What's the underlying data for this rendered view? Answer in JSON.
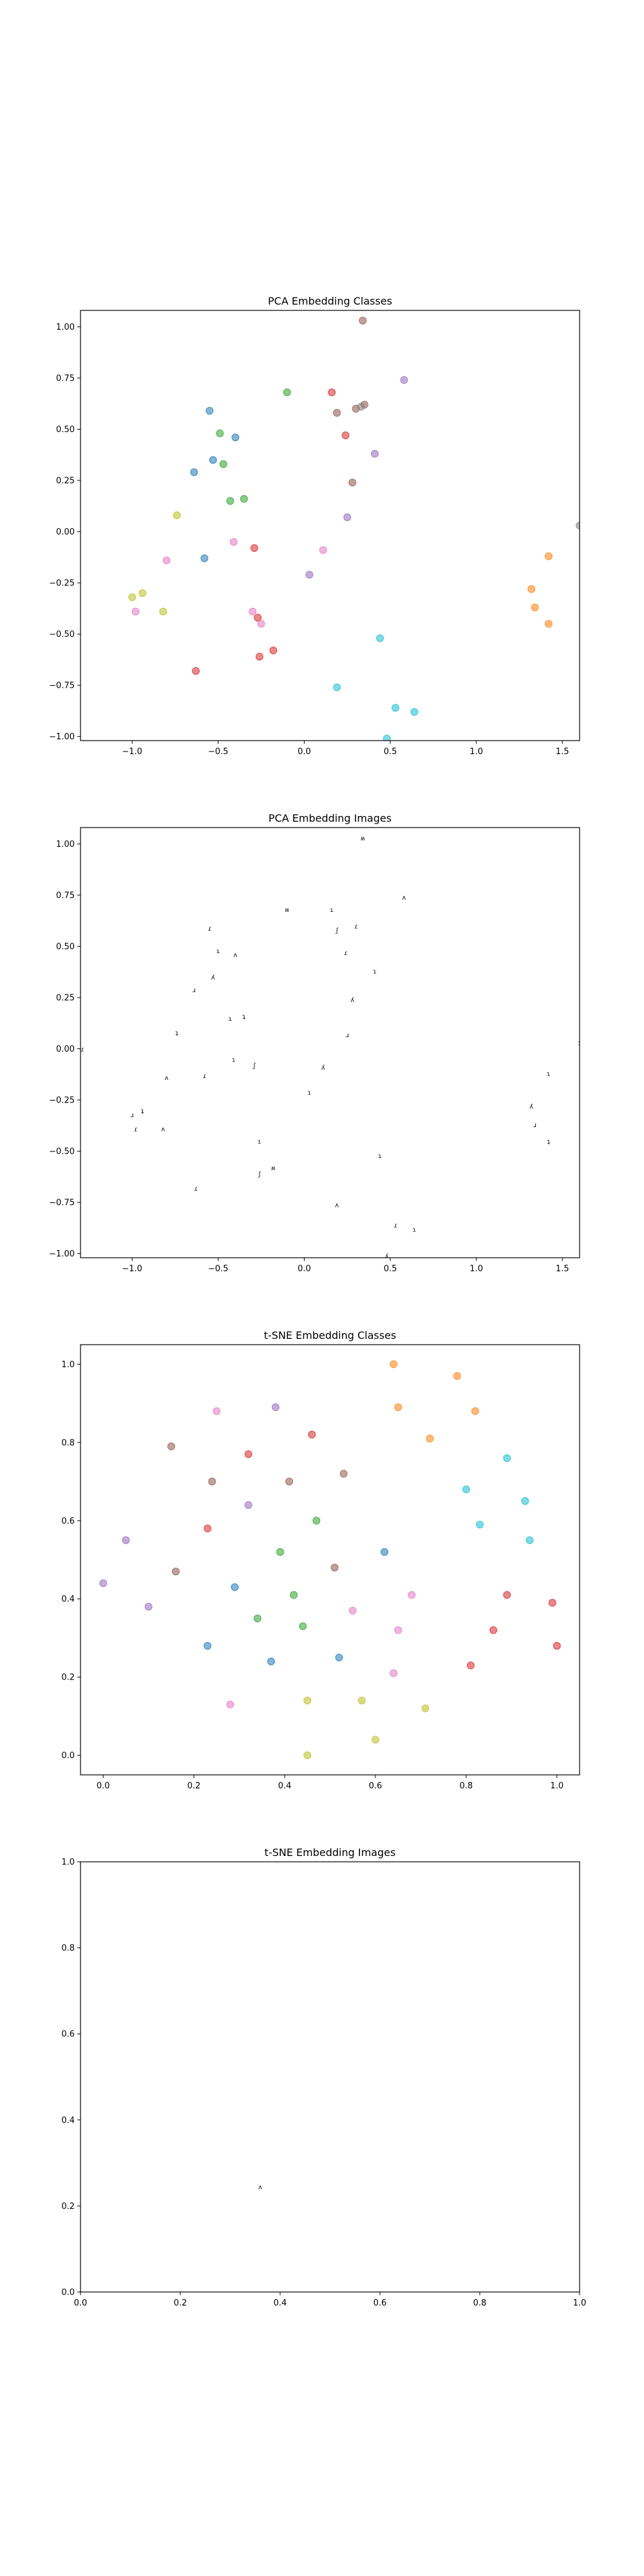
{
  "colors": {
    "tab10": [
      "#1f77b4",
      "#ff7f0e",
      "#2ca02c",
      "#d62728",
      "#9467bd",
      "#8c564b",
      "#e377c2",
      "#7f7f7f",
      "#bcbd22",
      "#17becf"
    ]
  },
  "chart_data": [
    {
      "type": "scatter",
      "title": "PCA Embedding Classes",
      "xlabel": "",
      "ylabel": "",
      "xlim": [
        -1.3,
        1.6
      ],
      "ylim": [
        -1.02,
        1.08
      ],
      "xticks": [
        -1.0,
        -0.5,
        0.0,
        0.5,
        1.0,
        1.5
      ],
      "yticks": [
        -1.0,
        -0.75,
        -0.5,
        -0.25,
        0.0,
        0.25,
        0.5,
        0.75,
        1.0
      ],
      "tick_labels_x": [
        "−1.0",
        "−0.5",
        "0.0",
        "0.5",
        "1.0",
        "1.5"
      ],
      "tick_labels_y": [
        "−1.00",
        "−0.75",
        "−0.50",
        "−0.25",
        "0.00",
        "0.25",
        "0.50",
        "0.75",
        "1.00"
      ],
      "grid": false,
      "points": [
        {
          "x": -0.55,
          "y": 0.59,
          "c": 0
        },
        {
          "x": -0.4,
          "y": 0.46,
          "c": 0
        },
        {
          "x": -0.53,
          "y": 0.35,
          "c": 0
        },
        {
          "x": -0.64,
          "y": 0.29,
          "c": 0
        },
        {
          "x": -0.58,
          "y": -0.13,
          "c": 0
        },
        {
          "x": 1.42,
          "y": -0.12,
          "c": 1
        },
        {
          "x": 1.32,
          "y": -0.28,
          "c": 1
        },
        {
          "x": 1.34,
          "y": -0.37,
          "c": 1
        },
        {
          "x": 1.42,
          "y": -0.45,
          "c": 1
        },
        {
          "x": -0.1,
          "y": 0.68,
          "c": 2
        },
        {
          "x": -0.49,
          "y": 0.48,
          "c": 2
        },
        {
          "x": -0.47,
          "y": 0.33,
          "c": 2
        },
        {
          "x": -0.43,
          "y": 0.15,
          "c": 2
        },
        {
          "x": -0.35,
          "y": 0.16,
          "c": 2
        },
        {
          "x": 0.16,
          "y": 0.68,
          "c": 3
        },
        {
          "x": 0.24,
          "y": 0.47,
          "c": 3
        },
        {
          "x": -0.29,
          "y": -0.08,
          "c": 3
        },
        {
          "x": -0.27,
          "y": -0.42,
          "c": 3
        },
        {
          "x": -0.18,
          "y": -0.58,
          "c": 3
        },
        {
          "x": -0.26,
          "y": -0.61,
          "c": 3
        },
        {
          "x": -0.63,
          "y": -0.68,
          "c": 3
        },
        {
          "x": 0.03,
          "y": -0.21,
          "c": 4
        },
        {
          "x": 0.25,
          "y": 0.07,
          "c": 4
        },
        {
          "x": 0.58,
          "y": 0.74,
          "c": 4
        },
        {
          "x": 0.41,
          "y": 0.38,
          "c": 4
        },
        {
          "x": 0.19,
          "y": 0.58,
          "c": 5
        },
        {
          "x": 0.3,
          "y": 0.6,
          "c": 5
        },
        {
          "x": 0.35,
          "y": 0.62,
          "c": 5
        },
        {
          "x": 0.34,
          "y": 1.03,
          "c": 5
        },
        {
          "x": 0.28,
          "y": 0.24,
          "c": 5
        },
        {
          "x": -0.41,
          "y": -0.05,
          "c": 6
        },
        {
          "x": -0.8,
          "y": -0.14,
          "c": 6
        },
        {
          "x": -0.3,
          "y": -0.39,
          "c": 6
        },
        {
          "x": -0.25,
          "y": -0.45,
          "c": 6
        },
        {
          "x": 0.11,
          "y": -0.09,
          "c": 6
        },
        {
          "x": -0.98,
          "y": -0.39,
          "c": 6
        },
        {
          "x": 0.33,
          "y": 0.61,
          "c": 7
        },
        {
          "x": 1.6,
          "y": 0.03,
          "c": 7
        },
        {
          "x": -0.74,
          "y": 0.08,
          "c": 8
        },
        {
          "x": -1.0,
          "y": -0.32,
          "c": 8
        },
        {
          "x": -0.94,
          "y": -0.3,
          "c": 8
        },
        {
          "x": -0.82,
          "y": -0.39,
          "c": 8
        },
        {
          "x": 0.44,
          "y": -0.52,
          "c": 9
        },
        {
          "x": 0.19,
          "y": -0.76,
          "c": 9
        },
        {
          "x": 0.53,
          "y": -0.86,
          "c": 9
        },
        {
          "x": 0.64,
          "y": -0.88,
          "c": 9
        },
        {
          "x": 0.48,
          "y": -1.01,
          "c": 9
        }
      ]
    },
    {
      "type": "scatter",
      "title": "PCA Embedding Images",
      "xlabel": "",
      "ylabel": "",
      "xlim": [
        -1.3,
        1.6
      ],
      "ylim": [
        -1.02,
        1.08
      ],
      "xticks": [
        -1.0,
        -0.5,
        0.0,
        0.5,
        1.0,
        1.5
      ],
      "yticks": [
        -1.0,
        -0.75,
        -0.5,
        -0.25,
        0.0,
        0.25,
        0.5,
        0.75,
        1.0
      ],
      "tick_labels_x": [
        "−1.0",
        "−0.5",
        "0.0",
        "0.5",
        "1.0",
        "1.5"
      ],
      "tick_labels_y": [
        "−1.00",
        "−0.75",
        "−0.50",
        "−0.25",
        "0.00",
        "0.25",
        "0.50",
        "0.75",
        "1.00"
      ],
      "grid": false,
      "glyphs": [
        {
          "x": -0.55,
          "y": 0.59,
          "t": "ɾ"
        },
        {
          "x": -0.4,
          "y": 0.46,
          "t": "ʌ"
        },
        {
          "x": -0.5,
          "y": 0.48,
          "t": "ɿ"
        },
        {
          "x": -0.64,
          "y": 0.29,
          "t": "ɹ"
        },
        {
          "x": -0.53,
          "y": 0.35,
          "t": "ʎ"
        },
        {
          "x": -0.43,
          "y": 0.15,
          "t": "ɿ"
        },
        {
          "x": -0.35,
          "y": 0.16,
          "t": "ʇ"
        },
        {
          "x": -0.1,
          "y": 0.68,
          "t": "ʍ"
        },
        {
          "x": 0.16,
          "y": 0.68,
          "t": "ɿ"
        },
        {
          "x": 0.3,
          "y": 0.6,
          "t": "ɾ"
        },
        {
          "x": 0.19,
          "y": 0.58,
          "t": "ʃ"
        },
        {
          "x": 0.24,
          "y": 0.47,
          "t": "ɾ"
        },
        {
          "x": 0.58,
          "y": 0.74,
          "t": "ʌ"
        },
        {
          "x": 0.41,
          "y": 0.38,
          "t": "ɿ"
        },
        {
          "x": 0.28,
          "y": 0.24,
          "t": "ʎ"
        },
        {
          "x": 0.25,
          "y": 0.07,
          "t": "ɹ"
        },
        {
          "x": 0.34,
          "y": 1.03,
          "t": "ʍ"
        },
        {
          "x": -0.74,
          "y": 0.08,
          "t": "ʇ"
        },
        {
          "x": -0.58,
          "y": -0.13,
          "t": "ɾ"
        },
        {
          "x": -0.8,
          "y": -0.14,
          "t": "ʌ"
        },
        {
          "x": -0.41,
          "y": -0.05,
          "t": "ɿ"
        },
        {
          "x": -0.29,
          "y": -0.08,
          "t": "ʃ"
        },
        {
          "x": 0.03,
          "y": -0.21,
          "t": "ɿ"
        },
        {
          "x": 0.11,
          "y": -0.09,
          "t": "ʎ"
        },
        {
          "x": -1.0,
          "y": -0.32,
          "t": "ɹ"
        },
        {
          "x": -0.94,
          "y": -0.3,
          "t": "ʇ"
        },
        {
          "x": -0.98,
          "y": -0.39,
          "t": "ɾ"
        },
        {
          "x": -0.82,
          "y": -0.39,
          "t": "ʌ"
        },
        {
          "x": -0.26,
          "y": -0.45,
          "t": "ɿ"
        },
        {
          "x": -0.18,
          "y": -0.58,
          "t": "ʍ"
        },
        {
          "x": -0.26,
          "y": -0.61,
          "t": "ʃ"
        },
        {
          "x": -0.63,
          "y": -0.68,
          "t": "ɾ"
        },
        {
          "x": 1.42,
          "y": -0.12,
          "t": "ɿ"
        },
        {
          "x": 1.32,
          "y": -0.28,
          "t": "ʎ"
        },
        {
          "x": 1.34,
          "y": -0.37,
          "t": "ɹ"
        },
        {
          "x": 1.42,
          "y": -0.45,
          "t": "ʇ"
        },
        {
          "x": 0.44,
          "y": -0.52,
          "t": "ɿ"
        },
        {
          "x": 0.19,
          "y": -0.76,
          "t": "ʌ"
        },
        {
          "x": 0.53,
          "y": -0.86,
          "t": "ɾ"
        },
        {
          "x": 0.64,
          "y": -0.88,
          "t": "ɿ"
        },
        {
          "x": 0.48,
          "y": -1.01,
          "t": "ʎ"
        },
        {
          "x": -1.29,
          "y": 0.0,
          "t": "ɾ"
        },
        {
          "x": 1.6,
          "y": 0.03,
          "t": "ʇ"
        }
      ]
    },
    {
      "type": "scatter",
      "title": "t-SNE Embedding Classes",
      "xlabel": "",
      "ylabel": "",
      "xlim": [
        -0.05,
        1.05
      ],
      "ylim": [
        -0.05,
        1.05
      ],
      "xticks": [
        0.0,
        0.2,
        0.4,
        0.6,
        0.8,
        1.0
      ],
      "yticks": [
        0.0,
        0.2,
        0.4,
        0.6,
        0.8,
        1.0
      ],
      "tick_labels_x": [
        "0.0",
        "0.2",
        "0.4",
        "0.6",
        "0.8",
        "1.0"
      ],
      "tick_labels_y": [
        "0.0",
        "0.2",
        "0.4",
        "0.6",
        "0.8",
        "1.0"
      ],
      "grid": false,
      "points": [
        {
          "x": 0.0,
          "y": 0.44,
          "c": 4
        },
        {
          "x": 0.05,
          "y": 0.55,
          "c": 4
        },
        {
          "x": 0.1,
          "y": 0.38,
          "c": 4
        },
        {
          "x": 0.15,
          "y": 0.79,
          "c": 5
        },
        {
          "x": 0.16,
          "y": 0.47,
          "c": 5
        },
        {
          "x": 0.23,
          "y": 0.58,
          "c": 3
        },
        {
          "x": 0.23,
          "y": 0.28,
          "c": 0
        },
        {
          "x": 0.24,
          "y": 0.7,
          "c": 5
        },
        {
          "x": 0.25,
          "y": 0.88,
          "c": 6
        },
        {
          "x": 0.28,
          "y": 0.13,
          "c": 6
        },
        {
          "x": 0.29,
          "y": 0.43,
          "c": 0
        },
        {
          "x": 0.32,
          "y": 0.77,
          "c": 3
        },
        {
          "x": 0.32,
          "y": 0.64,
          "c": 4
        },
        {
          "x": 0.34,
          "y": 0.35,
          "c": 2
        },
        {
          "x": 0.37,
          "y": 0.24,
          "c": 0
        },
        {
          "x": 0.38,
          "y": 0.89,
          "c": 4
        },
        {
          "x": 0.39,
          "y": 0.52,
          "c": 2
        },
        {
          "x": 0.41,
          "y": 0.7,
          "c": 5
        },
        {
          "x": 0.42,
          "y": 0.41,
          "c": 2
        },
        {
          "x": 0.44,
          "y": 0.33,
          "c": 2
        },
        {
          "x": 0.45,
          "y": 0.14,
          "c": 8
        },
        {
          "x": 0.45,
          "y": 0.0,
          "c": 8
        },
        {
          "x": 0.46,
          "y": 0.82,
          "c": 3
        },
        {
          "x": 0.47,
          "y": 0.6,
          "c": 2
        },
        {
          "x": 0.51,
          "y": 0.48,
          "c": 5
        },
        {
          "x": 0.52,
          "y": 0.25,
          "c": 0
        },
        {
          "x": 0.53,
          "y": 0.72,
          "c": 5
        },
        {
          "x": 0.55,
          "y": 0.37,
          "c": 6
        },
        {
          "x": 0.57,
          "y": 0.14,
          "c": 8
        },
        {
          "x": 0.6,
          "y": 0.04,
          "c": 8
        },
        {
          "x": 0.62,
          "y": 0.52,
          "c": 0
        },
        {
          "x": 0.64,
          "y": 1.0,
          "c": 1
        },
        {
          "x": 0.64,
          "y": 0.21,
          "c": 6
        },
        {
          "x": 0.65,
          "y": 0.32,
          "c": 6
        },
        {
          "x": 0.65,
          "y": 0.89,
          "c": 1
        },
        {
          "x": 0.68,
          "y": 0.41,
          "c": 6
        },
        {
          "x": 0.71,
          "y": 0.12,
          "c": 8
        },
        {
          "x": 0.72,
          "y": 0.81,
          "c": 1
        },
        {
          "x": 0.78,
          "y": 0.97,
          "c": 1
        },
        {
          "x": 0.8,
          "y": 0.68,
          "c": 9
        },
        {
          "x": 0.81,
          "y": 0.23,
          "c": 3
        },
        {
          "x": 0.82,
          "y": 0.88,
          "c": 1
        },
        {
          "x": 0.83,
          "y": 0.59,
          "c": 9
        },
        {
          "x": 0.86,
          "y": 0.32,
          "c": 3
        },
        {
          "x": 0.89,
          "y": 0.41,
          "c": 3
        },
        {
          "x": 0.89,
          "y": 0.76,
          "c": 9
        },
        {
          "x": 0.93,
          "y": 0.65,
          "c": 9
        },
        {
          "x": 0.94,
          "y": 0.55,
          "c": 9
        },
        {
          "x": 0.99,
          "y": 0.39,
          "c": 3
        },
        {
          "x": 1.0,
          "y": 0.28,
          "c": 3
        }
      ]
    },
    {
      "type": "scatter",
      "title": "t-SNE Embedding Images",
      "xlabel": "",
      "ylabel": "",
      "xlim": [
        0.0,
        1.0
      ],
      "ylim": [
        0.0,
        1.0
      ],
      "xticks": [
        0.0,
        0.2,
        0.4,
        0.6,
        0.8,
        1.0
      ],
      "yticks": [
        0.0,
        0.2,
        0.4,
        0.6,
        0.8,
        1.0
      ],
      "tick_labels_x": [
        "0.0",
        "0.2",
        "0.4",
        "0.6",
        "0.8",
        "1.0"
      ],
      "tick_labels_y": [
        "0.0",
        "0.2",
        "0.4",
        "0.6",
        "0.8",
        "1.0"
      ],
      "grid": false,
      "glyphs": [
        {
          "x": 0.36,
          "y": 0.245,
          "t": "ʌ"
        }
      ]
    }
  ]
}
